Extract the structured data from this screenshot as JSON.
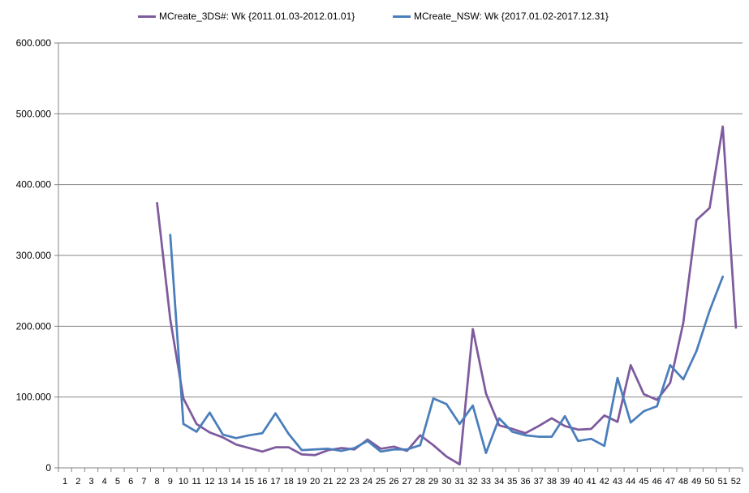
{
  "chart_data": {
    "type": "line",
    "title": "",
    "xlabel": "",
    "ylabel": "",
    "categories": [
      "1",
      "2",
      "3",
      "4",
      "5",
      "6",
      "7",
      "8",
      "9",
      "10",
      "11",
      "12",
      "13",
      "14",
      "15",
      "16",
      "17",
      "18",
      "19",
      "20",
      "21",
      "22",
      "23",
      "24",
      "25",
      "26",
      "27",
      "28",
      "29",
      "30",
      "31",
      "32",
      "33",
      "34",
      "35",
      "36",
      "37",
      "38",
      "39",
      "40",
      "41",
      "42",
      "43",
      "44",
      "45",
      "46",
      "47",
      "48",
      "49",
      "50",
      "51",
      "52"
    ],
    "ylim": [
      0,
      600
    ],
    "yticks": [
      "0",
      "100.000",
      "200.000",
      "300.000",
      "400.000",
      "500.000",
      "600.000"
    ],
    "ytick_values": [
      0,
      100,
      200,
      300,
      400,
      500,
      600
    ],
    "grid": true,
    "legend_position": "top",
    "series": [
      {
        "name": "MCreate_3DS#: Wk {2011.01.03-2012.01.01}",
        "color": "#7e5a9e",
        "values": [
          null,
          null,
          null,
          null,
          null,
          null,
          null,
          374,
          210,
          98,
          62,
          50,
          43,
          33,
          28,
          23,
          29,
          29,
          19,
          18,
          25,
          28,
          26,
          40,
          27,
          30,
          24,
          46,
          32,
          16,
          5,
          196,
          105,
          60,
          55,
          49,
          59,
          70,
          59,
          54,
          55,
          74,
          65,
          145,
          104,
          96,
          120,
          205,
          350,
          367,
          482,
          198
        ]
      },
      {
        "name": "MCreate_NSW: Wk {2017.01.02-2017.12.31}",
        "color": "#4a7ebb",
        "values": [
          null,
          null,
          null,
          null,
          null,
          null,
          null,
          null,
          329,
          62,
          51,
          78,
          47,
          42,
          46,
          49,
          77,
          48,
          25,
          26,
          27,
          24,
          28,
          38,
          23,
          26,
          26,
          32,
          98,
          90,
          62,
          88,
          21,
          70,
          51,
          46,
          44,
          44,
          73,
          38,
          41,
          31,
          127,
          64,
          80,
          87,
          145,
          125,
          165,
          222,
          270,
          null
        ]
      }
    ]
  }
}
